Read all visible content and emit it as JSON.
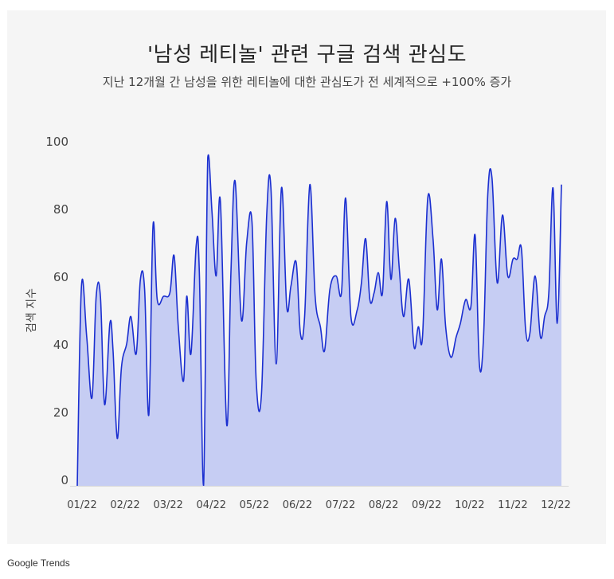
{
  "colors": {
    "panel_background": "#f5f5f5",
    "line": "#1b2fd0",
    "fill": "#c6cdf3",
    "axis_text": "#444444"
  },
  "chart_data": {
    "type": "area",
    "title": "'남성 레티놀' 관련 구글 검색 관심도",
    "subtitle": "지난 12개월 간 남성을 위한 레티놀에 대한 관심도가 전 세계적으로 +100% 증가",
    "xlabel": "",
    "ylabel": "검색 지수",
    "ylim": [
      0,
      100
    ],
    "yticks": [
      0,
      20,
      40,
      60,
      80,
      100
    ],
    "xtick_labels": [
      "01/22",
      "02/22",
      "03/22",
      "04/22",
      "05/22",
      "06/22",
      "07/22",
      "08/22",
      "09/22",
      "10/22",
      "11/22",
      "12/22"
    ],
    "grid": false,
    "legend": "none",
    "x": [
      0.0,
      0.2,
      0.45,
      0.7,
      0.9,
      1.1,
      1.3,
      1.55,
      1.7,
      1.9,
      2.1,
      2.35,
      2.55,
      2.8,
      3.0,
      3.2,
      3.4,
      3.6,
      3.8,
      4.1,
      4.4,
      4.6,
      4.8,
      5.05,
      5.2,
      5.4,
      5.65,
      5.8,
      6.0,
      6.2,
      6.4,
      6.6,
      6.8,
      7.1,
      7.3,
      7.5,
      7.8,
      8.05,
      8.3,
      8.5,
      8.75,
      9.0,
      9.2,
      9.45,
      9.7,
      9.95,
      10.15,
      10.4,
      10.6,
      10.8,
      11.05,
      11.3,
      11.55,
      11.75,
      12.0,
      12.3,
      12.55,
      12.75,
      13.0,
      13.3,
      13.5,
      13.7,
      13.9,
      14.1,
      14.3,
      14.5,
      14.7,
      14.9,
      15.1,
      15.3,
      15.5,
      15.75,
      16.0,
      16.2,
      16.4,
      16.65,
      16.9,
      17.1,
      17.3,
      17.5,
      17.75,
      18.0,
      18.2,
      18.45,
      18.7,
      18.9,
      19.1,
      19.3,
      19.5,
      19.7,
      19.95,
      20.2,
      20.45,
      20.7,
      20.9,
      21.1,
      21.3,
      21.5,
      21.75,
      22.0,
      22.2,
      22.4,
      22.6,
      22.8,
      23.0
    ],
    "values": [
      0,
      59,
      44,
      26,
      56,
      56,
      24,
      48,
      40,
      14,
      35,
      42,
      50,
      39,
      61,
      58,
      21,
      77,
      55,
      56,
      57,
      68,
      47,
      31,
      56,
      39,
      71,
      63,
      0,
      97,
      81,
      62,
      84,
      18,
      63,
      90,
      49,
      72,
      78,
      31,
      27,
      80,
      88,
      36,
      88,
      53,
      59,
      66,
      45,
      50,
      89,
      56,
      47,
      40,
      58,
      62,
      57,
      85,
      50,
      52,
      60,
      73,
      55,
      57,
      63,
      57,
      84,
      61,
      79,
      64,
      50,
      61,
      41,
      47,
      44,
      85,
      73,
      52,
      67,
      47,
      38,
      44,
      48,
      55,
      53,
      74,
      36,
      44,
      86,
      91,
      60,
      80,
      62,
      67,
      67,
      70,
      46,
      45,
      62,
      44,
      50,
      57,
      88,
      48,
      89
    ]
  },
  "source": "Google Trends"
}
